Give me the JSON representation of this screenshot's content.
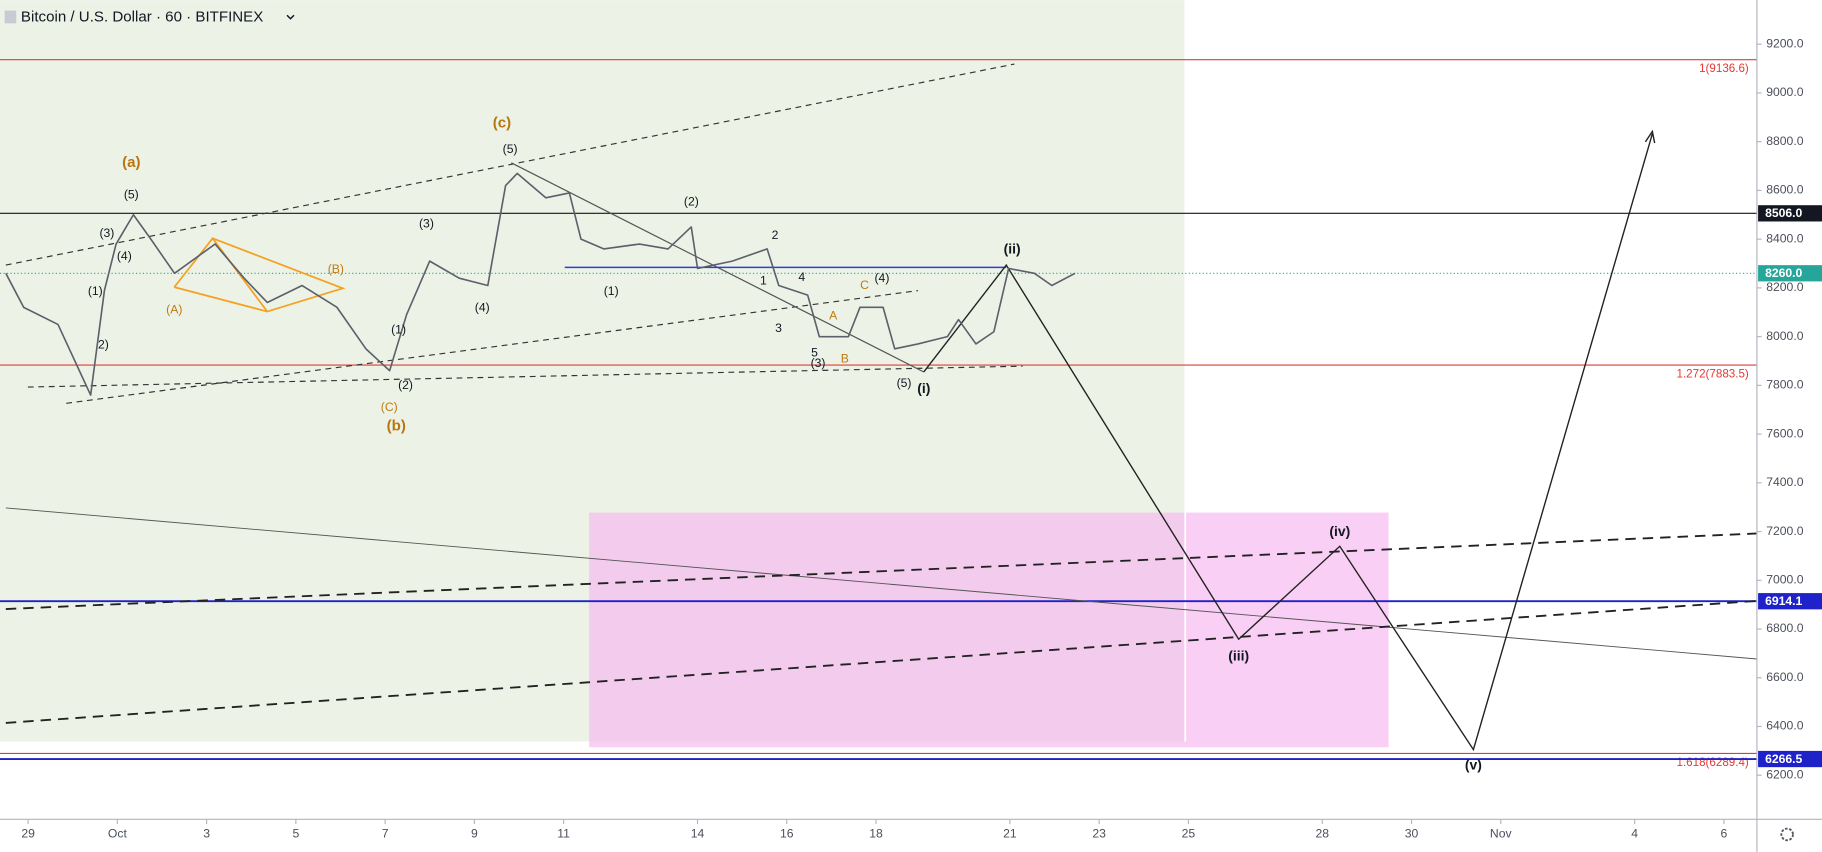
{
  "header": {
    "title": "Bitcoin / U.S. Dollar · 60 · BITFINEX"
  },
  "chart_data": {
    "type": "line",
    "x": [
      -1.5,
      -1.1,
      -0.33,
      0.4,
      0.71,
      0.97,
      1.36,
      1.75,
      2.28,
      3.19,
      3.84,
      4.36,
      5.14,
      5.92,
      6.57,
      7.1,
      7.48,
      8.0,
      8.66,
      9.3,
      9.7,
      9.96,
      10.6,
      11.13,
      11.39,
      11.9,
      12.7,
      13.34,
      13.86,
      14.0,
      14.78,
      15.56,
      15.82,
      16.47,
      16.73,
      17.38,
      17.64,
      18.16,
      18.42,
      18.94,
      19.6,
      19.85,
      20.24,
      20.64,
      20.97,
      21.55,
      21.94,
      22.46
    ],
    "values": [
      8260,
      8120,
      8050,
      7760,
      8190,
      8380,
      8500,
      8400,
      8260,
      8380,
      8240,
      8140,
      8210,
      8120,
      7950,
      7860,
      8090,
      8310,
      8240,
      8210,
      8620,
      8670,
      8570,
      8590,
      8400,
      8360,
      8380,
      8360,
      8450,
      8280,
      8310,
      8360,
      8210,
      8170,
      8000,
      8000,
      8120,
      8120,
      7950,
      7970,
      8000,
      8070,
      7970,
      8020,
      8280,
      8260,
      8210,
      8260
    ],
    "color": "#5d606b",
    "xlim": [
      -1.63,
      37.74
    ],
    "ylim": [
      6019,
      9381
    ],
    "xticks": [
      {
        "value": -1,
        "label": "29"
      },
      {
        "value": 1,
        "label": "Oct"
      },
      3,
      5,
      7,
      9,
      11,
      14,
      16,
      18,
      21,
      23,
      25,
      28,
      30,
      {
        "value": 32,
        "label": "Nov"
      },
      {
        "value": 35,
        "label": "4"
      },
      {
        "value": 37,
        "label": "6"
      }
    ],
    "yticks": [
      {
        "value": 6200,
        "label": "6200.0"
      },
      {
        "value": 6400,
        "label": "6400.0"
      },
      {
        "value": 6600,
        "label": "6600.0"
      },
      {
        "value": 6800,
        "label": "6800.0"
      },
      {
        "value": 7000,
        "label": "7000.0"
      },
      {
        "value": 7200,
        "label": "7200.0"
      },
      {
        "value": 7400,
        "label": "7400.0"
      },
      {
        "value": 7600,
        "label": "7600.0"
      },
      {
        "value": 7800,
        "label": "7800.0"
      },
      {
        "value": 8000,
        "label": "8000.0"
      },
      {
        "value": 8200,
        "label": "8200.0"
      },
      {
        "value": 8400,
        "label": "8400.0"
      },
      {
        "value": 8600,
        "label": "8600.0"
      },
      {
        "value": 8800,
        "label": "8800.0"
      },
      {
        "value": 9000,
        "label": "9000.0"
      },
      {
        "value": 9200,
        "label": "9200.0"
      }
    ],
    "grid": false,
    "levels": [
      {
        "value": 9136.6,
        "label": "1(9136.6)",
        "color": "#e53935",
        "box": false,
        "dash": false
      },
      {
        "value": 8506.0,
        "label": "8506.0",
        "color": "#131722",
        "box": true,
        "dash": false
      },
      {
        "value": 8260.0,
        "label": "8260.0",
        "color": "#26a69a",
        "box": true,
        "dash": true
      },
      {
        "value": 7883.5,
        "label": "1.272(7883.5)",
        "color": "#e53935",
        "box": false,
        "dash": false
      },
      {
        "value": 6914.1,
        "label": "6914.1",
        "color": "#1e22c8",
        "box": true,
        "dash": false
      },
      {
        "value": 6289.4,
        "label": "1.618(6289.4)",
        "color": "#e53935",
        "box": false,
        "dash": false
      },
      {
        "value": 6266.5,
        "label": "6266.5",
        "color": "#1e22c8",
        "box": true,
        "dash": false
      }
    ]
  },
  "annotations": [
    "(a)",
    "(b)",
    "(c)",
    "(5)",
    "(3)",
    "(4)",
    "(1)",
    "2)",
    "(A)",
    "(B)",
    "(C)",
    "(2)",
    "(1)",
    "(3)",
    "(4)",
    "(5)",
    "(1)",
    "(2)",
    "2",
    "4",
    "1",
    "3",
    "5",
    "(3)",
    "A",
    "B",
    "C",
    "(4)",
    "(5)",
    "(i)",
    "(ii)",
    "(iii)",
    "(iv)",
    "(v)"
  ]
}
